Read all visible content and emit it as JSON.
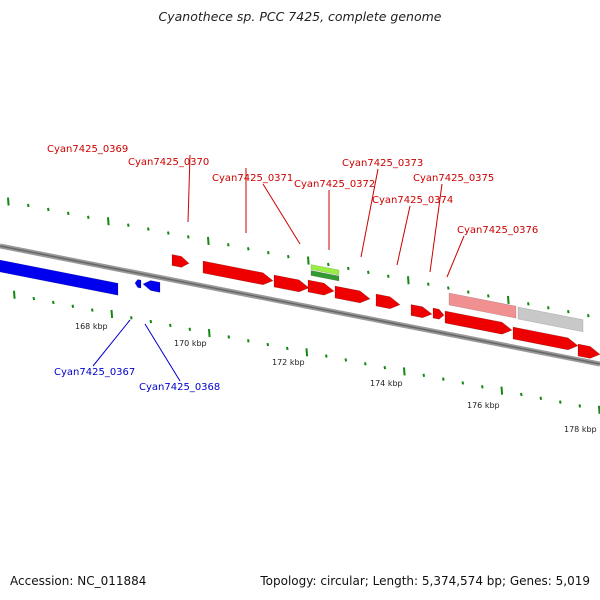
{
  "title": "Cyanothece sp. PCC 7425, complete genome",
  "footer": {
    "accession": "Accession: NC_011884",
    "summary": "Topology: circular; Length: 5,374,574 bp; Genes: 5,019"
  },
  "colors": {
    "forward_gene": "#ee0000",
    "reverse_gene": "#0000ee",
    "rna_gene": "#66cc33",
    "pseudo_gene": "#f09090",
    "other_feature": "#c8c8c8",
    "backbone": "#777777",
    "ticks": "#118811",
    "forward_label": "#cc0000",
    "reverse_label": "#0000cc"
  },
  "scale_ticks": [
    "168 kbp",
    "170 kbp",
    "172 kbp",
    "174 kbp",
    "176 kbp",
    "178 kbp"
  ],
  "forward_labels": [
    "Cyan7425_0369",
    "Cyan7425_0370",
    "Cyan7425_0371",
    "Cyan7425_0372",
    "Cyan7425_0373",
    "Cyan7425_0374",
    "Cyan7425_0375",
    "Cyan7425_0376"
  ],
  "reverse_labels": [
    "Cyan7425_0367",
    "Cyan7425_0368"
  ]
}
